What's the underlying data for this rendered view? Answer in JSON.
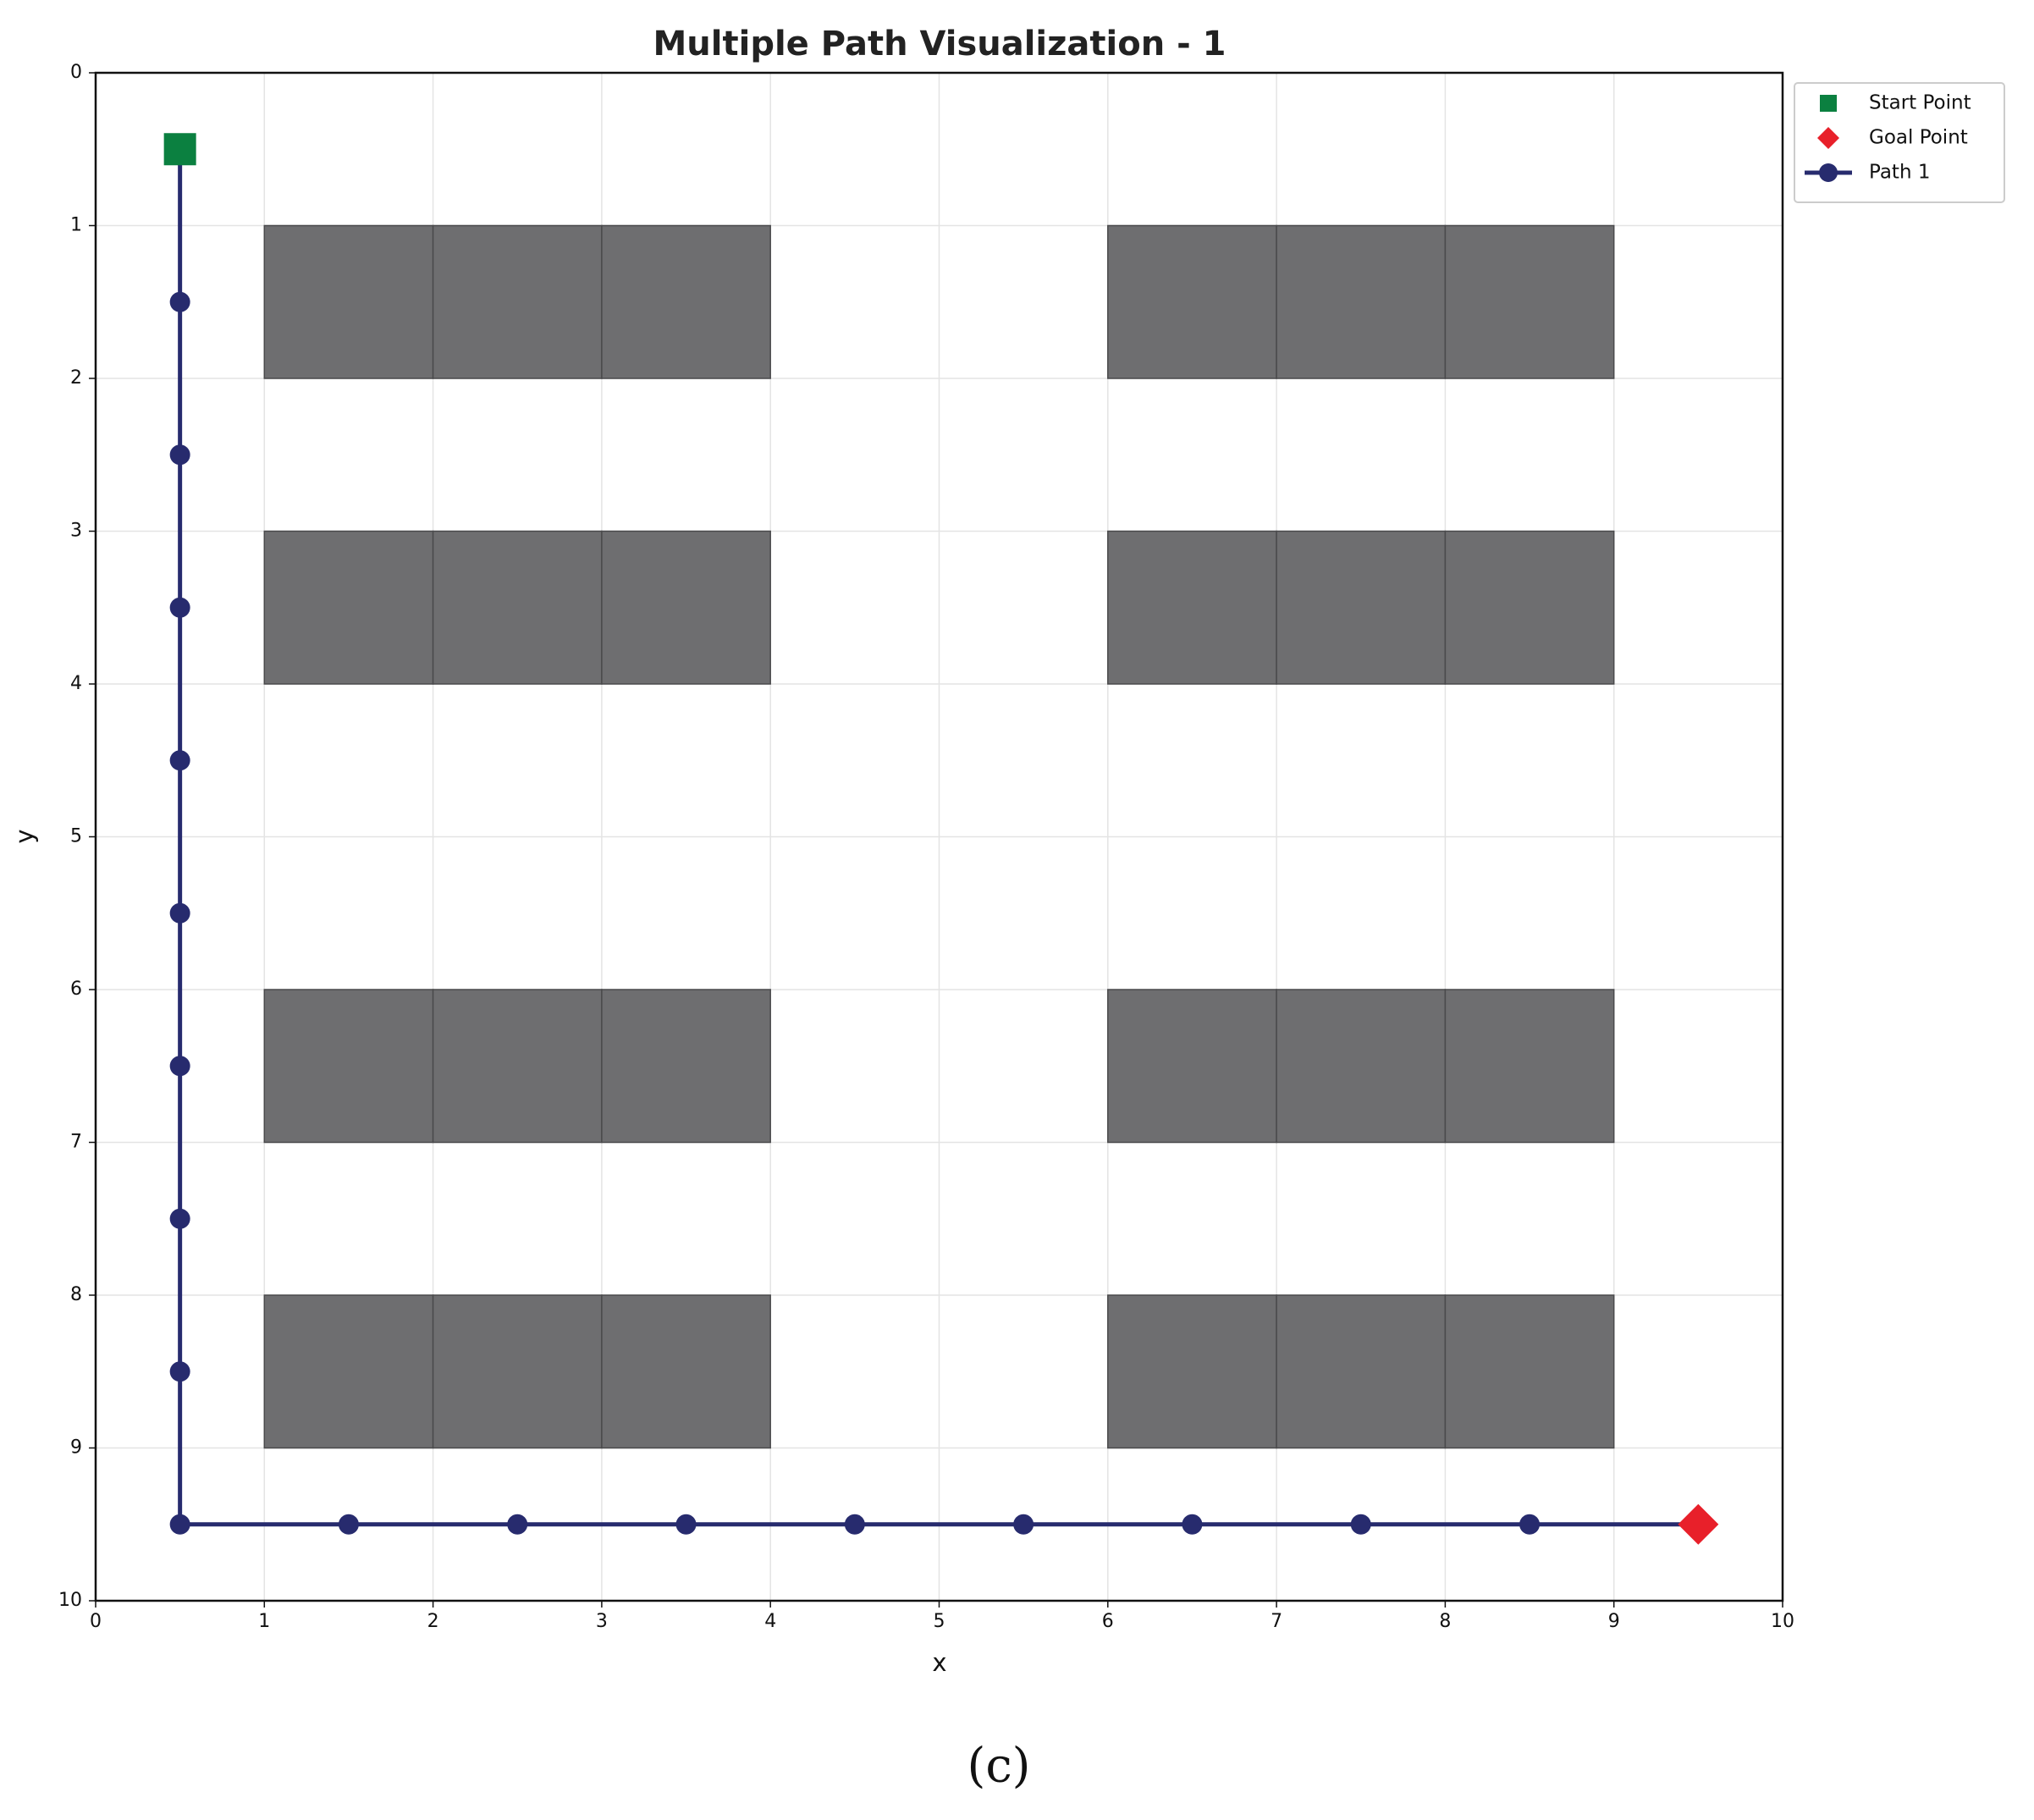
{
  "chart_data": {
    "type": "grid-path",
    "title": "Multiple Path Visualization - 1",
    "xlabel": "x",
    "ylabel": "y",
    "xlim": [
      0,
      10
    ],
    "ylim": [
      10,
      0
    ],
    "xticks": [
      0,
      1,
      2,
      3,
      4,
      5,
      6,
      7,
      8,
      9,
      10
    ],
    "yticks": [
      0,
      1,
      2,
      3,
      4,
      5,
      6,
      7,
      8,
      9,
      10
    ],
    "grid": true,
    "legend": "outside-upper-right",
    "obstacle_color": "#6e6e70",
    "obstacles": {
      "x": [
        1,
        2,
        3,
        6,
        7,
        8,
        1,
        2,
        3,
        6,
        7,
        8,
        1,
        2,
        3,
        6,
        7,
        8,
        1,
        2,
        3,
        6,
        7,
        8
      ],
      "y": [
        1,
        1,
        1,
        1,
        1,
        1,
        3,
        3,
        3,
        3,
        3,
        3,
        6,
        6,
        6,
        6,
        6,
        6,
        8,
        8,
        8,
        8,
        8,
        8
      ]
    },
    "series": [
      {
        "name": "Start Point",
        "color": "#0b8040",
        "marker": "square",
        "line": false,
        "x": [
          0.5
        ],
        "y": [
          0.5
        ]
      },
      {
        "name": "Goal Point",
        "color": "#e8202a",
        "marker": "diamond",
        "line": false,
        "x": [
          9.5
        ],
        "y": [
          9.5
        ]
      },
      {
        "name": "Path 1",
        "color": "#272b6e",
        "marker": "circle",
        "line": true,
        "x": [
          0.5,
          0.5,
          0.5,
          0.5,
          0.5,
          0.5,
          0.5,
          0.5,
          0.5,
          0.5,
          1.5,
          2.5,
          3.5,
          4.5,
          5.5,
          6.5,
          7.5,
          8.5,
          9.5
        ],
        "y": [
          0.5,
          1.5,
          2.5,
          3.5,
          4.5,
          5.5,
          6.5,
          7.5,
          8.5,
          9.5,
          9.5,
          9.5,
          9.5,
          9.5,
          9.5,
          9.5,
          9.5,
          9.5,
          9.5
        ]
      }
    ],
    "caption": "(c)"
  }
}
